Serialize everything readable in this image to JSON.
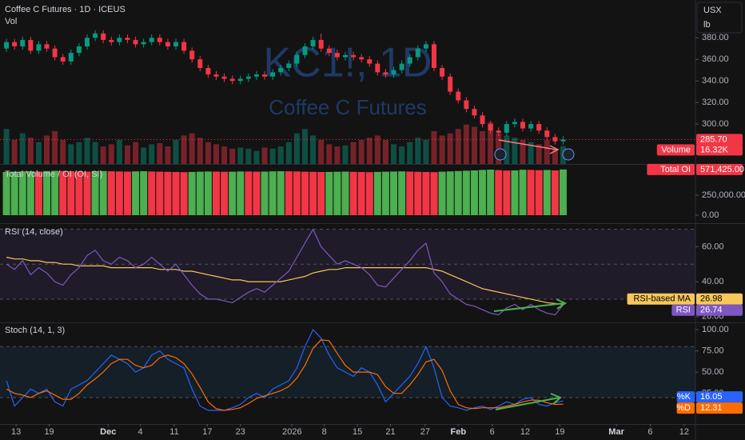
{
  "chart_data": [
    {
      "type": "candlestick",
      "title": "Coffee C Futures · 1D · ICEUS",
      "volume_title": "Vol",
      "watermark": "KC1!, 1D",
      "watermark_subtitle": "Coffee C Futures",
      "currency": "USX",
      "unit": "lb",
      "up_color": "#089981",
      "down_color": "#f23645",
      "open": [
        370,
        376,
        372,
        378,
        368,
        374,
        370,
        362,
        358,
        366,
        372,
        380,
        384,
        378,
        376,
        380,
        378,
        374,
        376,
        380,
        376,
        372,
        376,
        368,
        360,
        352,
        346,
        344,
        342,
        340,
        342,
        344,
        346,
        344,
        348,
        352,
        356,
        364,
        372,
        378,
        370,
        366,
        362,
        364,
        362,
        360,
        356,
        348,
        346,
        350,
        356,
        362,
        370,
        374,
        352,
        344,
        330,
        322,
        314,
        308,
        300,
        294,
        292,
        300,
        302,
        296,
        300,
        294,
        288,
        284
      ],
      "high": [
        379,
        379,
        381,
        381,
        377,
        377,
        373,
        365,
        369,
        375,
        383,
        387,
        387,
        381,
        383,
        383,
        381,
        379,
        383,
        383,
        379,
        379,
        379,
        371,
        363,
        355,
        349,
        347,
        345,
        345,
        347,
        349,
        349,
        351,
        355,
        359,
        367,
        375,
        381,
        384,
        373,
        369,
        367,
        367,
        365,
        363,
        359,
        351,
        353,
        359,
        365,
        373,
        377,
        377,
        355,
        347,
        333,
        325,
        317,
        311,
        303,
        297,
        303,
        305,
        305,
        303,
        303,
        297,
        291,
        289
      ],
      "low": [
        367,
        369,
        369,
        365,
        365,
        367,
        359,
        355,
        355,
        363,
        369,
        377,
        375,
        373,
        373,
        375,
        371,
        371,
        373,
        373,
        369,
        369,
        365,
        357,
        349,
        343,
        341,
        339,
        337,
        337,
        339,
        341,
        341,
        341,
        345,
        349,
        353,
        361,
        369,
        367,
        363,
        359,
        359,
        359,
        357,
        353,
        345,
        343,
        343,
        347,
        353,
        359,
        367,
        349,
        341,
        327,
        319,
        311,
        305,
        297,
        291,
        289,
        289,
        297,
        293,
        293,
        291,
        285,
        281,
        281
      ],
      "close": [
        376,
        372,
        378,
        368,
        374,
        370,
        362,
        358,
        366,
        372,
        380,
        384,
        378,
        376,
        380,
        378,
        374,
        376,
        380,
        376,
        372,
        376,
        368,
        360,
        352,
        346,
        344,
        342,
        340,
        342,
        344,
        346,
        344,
        348,
        352,
        356,
        364,
        372,
        378,
        370,
        366,
        362,
        364,
        362,
        360,
        356,
        348,
        346,
        350,
        356,
        362,
        370,
        374,
        352,
        344,
        330,
        322,
        314,
        308,
        300,
        294,
        292,
        300,
        302,
        296,
        300,
        294,
        288,
        284,
        285.7
      ],
      "volume": [
        32000,
        22000,
        28000,
        24000,
        20000,
        26000,
        30000,
        22000,
        18000,
        20000,
        24000,
        20000,
        16000,
        18000,
        22000,
        17000,
        20000,
        15000,
        18000,
        19000,
        16000,
        22000,
        26000,
        28000,
        24000,
        20000,
        18000,
        16000,
        14000,
        15000,
        14000,
        12000,
        15000,
        14000,
        16000,
        20000,
        28000,
        32000,
        26000,
        22000,
        18000,
        16000,
        17000,
        20000,
        22000,
        24000,
        26000,
        22000,
        18000,
        16000,
        20000,
        24000,
        22000,
        30000,
        26000,
        28000,
        32000,
        36000,
        34000,
        30000,
        38000,
        28000,
        26000,
        24000,
        22000,
        20000,
        18000,
        22000,
        14000,
        16320
      ],
      "last_price": {
        "value": 285.7,
        "label": "285.70"
      },
      "volume_name": "Volume",
      "last_volume": {
        "value": 16320,
        "label": "16.32K"
      },
      "ylim": [
        263,
        415
      ],
      "yticks": [
        {
          "value": 300,
          "label": "300.00"
        },
        {
          "value": 320,
          "label": "320.00"
        },
        {
          "value": 340,
          "label": "340.00"
        },
        {
          "value": 360,
          "label": "360.00"
        },
        {
          "value": 380,
          "label": "380.00"
        }
      ]
    },
    {
      "type": "bar",
      "title": "Total Volume / OI (OI, SI)",
      "up_color": "#4caf50",
      "down_color": "#f23645",
      "values": [
        540000,
        545000,
        548000,
        550000,
        546000,
        552000,
        555000,
        553000,
        550000,
        548000,
        545000,
        550000,
        552000,
        549000,
        547000,
        545000,
        548000,
        550000,
        546000,
        544000,
        542000,
        540000,
        538000,
        541000,
        544000,
        546000,
        545000,
        543000,
        544000,
        547000,
        546000,
        544000,
        545000,
        548000,
        550000,
        549000,
        547000,
        544000,
        542000,
        540000,
        541000,
        543000,
        545000,
        542000,
        540000,
        538000,
        541000,
        544000,
        546000,
        548000,
        545000,
        542000,
        540000,
        538000,
        544000,
        548000,
        552000,
        556000,
        560000,
        566000,
        570000,
        564000,
        558000,
        560000,
        568000,
        566000,
        562000,
        565000,
        560000,
        571425
      ],
      "last_name": "Total OI",
      "last_value": {
        "value": 571425,
        "label": "571,425.00"
      },
      "ylim": [
        -100000,
        630000
      ],
      "yticks": [
        {
          "value": 0,
          "label": "0.00"
        },
        {
          "value": 250000,
          "label": "250,000.00"
        }
      ]
    },
    {
      "type": "line",
      "title": "RSI (14, close)",
      "band": [
        30,
        70
      ],
      "band_color": "rgba(126,87,194,0.12)",
      "hlines": [
        70,
        50,
        30
      ],
      "series": [
        {
          "name": "RSI-based MA",
          "color": "#f7c75b",
          "tag_text": "#000000",
          "values": [
            54,
            53,
            53,
            52,
            52,
            51,
            51,
            50,
            50,
            49,
            49,
            49,
            49,
            48,
            48,
            48,
            48,
            48,
            48,
            47,
            47,
            47,
            46,
            46,
            45,
            44,
            43,
            42,
            41,
            41,
            40,
            40,
            40,
            40,
            40,
            41,
            42,
            43,
            45,
            46,
            47,
            47,
            48,
            48,
            48,
            48,
            48,
            48,
            48,
            48,
            48,
            48,
            48,
            47,
            46,
            44,
            42,
            40,
            38,
            36,
            35,
            34,
            33,
            32,
            31,
            30,
            29,
            28,
            27.5,
            26.98
          ]
        },
        {
          "name": "RSI",
          "color": "#7e57c2",
          "tag_text": "#ffffff",
          "values": [
            50,
            47,
            52,
            44,
            48,
            45,
            40,
            38,
            44,
            48,
            55,
            58,
            52,
            50,
            54,
            52,
            48,
            50,
            54,
            50,
            46,
            50,
            44,
            38,
            33,
            30,
            30,
            29,
            28,
            31,
            34,
            36,
            34,
            38,
            42,
            46,
            54,
            62,
            70,
            60,
            55,
            50,
            52,
            50,
            48,
            44,
            38,
            37,
            42,
            47,
            52,
            58,
            62,
            45,
            40,
            33,
            30,
            27,
            26,
            24,
            22,
            21,
            25,
            27,
            24,
            27,
            24,
            22,
            21,
            26.74
          ]
        }
      ],
      "ylim": [
        16.7,
        73
      ],
      "yticks": [
        {
          "value": 20,
          "label": "20.00"
        },
        {
          "value": 40,
          "label": "40.00"
        },
        {
          "value": 60,
          "label": "60.00"
        }
      ]
    },
    {
      "type": "line",
      "title": "Stoch (14, 1, 3)",
      "band": [
        20,
        80
      ],
      "band_color": "rgba(33,150,243,0.09)",
      "hlines": [
        80,
        20
      ],
      "series": [
        {
          "name": "%K",
          "color": "#2962ff",
          "tag_text": "#ffffff",
          "values": [
            40,
            10,
            20,
            30,
            25,
            30,
            15,
            10,
            30,
            35,
            40,
            50,
            60,
            70,
            65,
            60,
            50,
            55,
            70,
            75,
            65,
            60,
            55,
            30,
            10,
            5,
            5,
            5,
            8,
            12,
            20,
            25,
            20,
            30,
            35,
            40,
            55,
            80,
            100,
            90,
            70,
            55,
            50,
            45,
            55,
            50,
            35,
            15,
            25,
            35,
            45,
            60,
            80,
            55,
            20,
            10,
            8,
            5,
            8,
            10,
            6,
            10,
            15,
            12,
            18,
            20,
            12,
            10,
            14,
            16.05
          ]
        },
        {
          "name": "%D",
          "color": "#ff6d00",
          "tag_text": "#ffffff",
          "values": [
            30,
            25,
            23,
            20,
            25,
            28,
            23,
            18,
            18,
            25,
            35,
            42,
            50,
            60,
            65,
            65,
            58,
            55,
            58,
            67,
            70,
            67,
            60,
            48,
            32,
            15,
            7,
            5,
            6,
            8,
            13,
            19,
            22,
            25,
            28,
            33,
            43,
            58,
            78,
            88,
            87,
            72,
            58,
            50,
            50,
            50,
            47,
            33,
            25,
            25,
            35,
            47,
            62,
            65,
            52,
            28,
            12,
            8,
            7,
            8,
            8,
            8,
            10,
            12,
            15,
            17,
            17,
            14,
            12,
            12.31
          ]
        }
      ],
      "ylim": [
        -11.1,
        107.6
      ],
      "yticks": [
        {
          "value": 25,
          "label": "25.00"
        },
        {
          "value": 50,
          "label": "50.00"
        },
        {
          "value": 75,
          "label": "75.00"
        },
        {
          "value": 100,
          "label": "100.00"
        }
      ],
      "xlim": [
        -0.8,
        85.4
      ],
      "xticks": [
        {
          "value": 1.2,
          "label": "13"
        },
        {
          "value": 5.3,
          "label": "19"
        },
        {
          "value": 12.6,
          "label": "Dec"
        },
        {
          "value": 16.6,
          "label": "4"
        },
        {
          "value": 20.8,
          "label": "11"
        },
        {
          "value": 24.9,
          "label": "17"
        },
        {
          "value": 29,
          "label": "23"
        },
        {
          "value": 35.4,
          "label": "2026"
        },
        {
          "value": 39.4,
          "label": "8"
        },
        {
          "value": 43.5,
          "label": "15"
        },
        {
          "value": 47.6,
          "label": "21"
        },
        {
          "value": 51.9,
          "label": "27"
        },
        {
          "value": 56,
          "label": "Feb"
        },
        {
          "value": 60.2,
          "label": "6"
        },
        {
          "value": 64.3,
          "label": "12"
        },
        {
          "value": 68.6,
          "label": "19"
        },
        {
          "value": 75.6,
          "label": "Mar"
        },
        {
          "value": 79.8,
          "label": "6"
        },
        {
          "value": 84,
          "label": "12"
        }
      ]
    }
  ]
}
